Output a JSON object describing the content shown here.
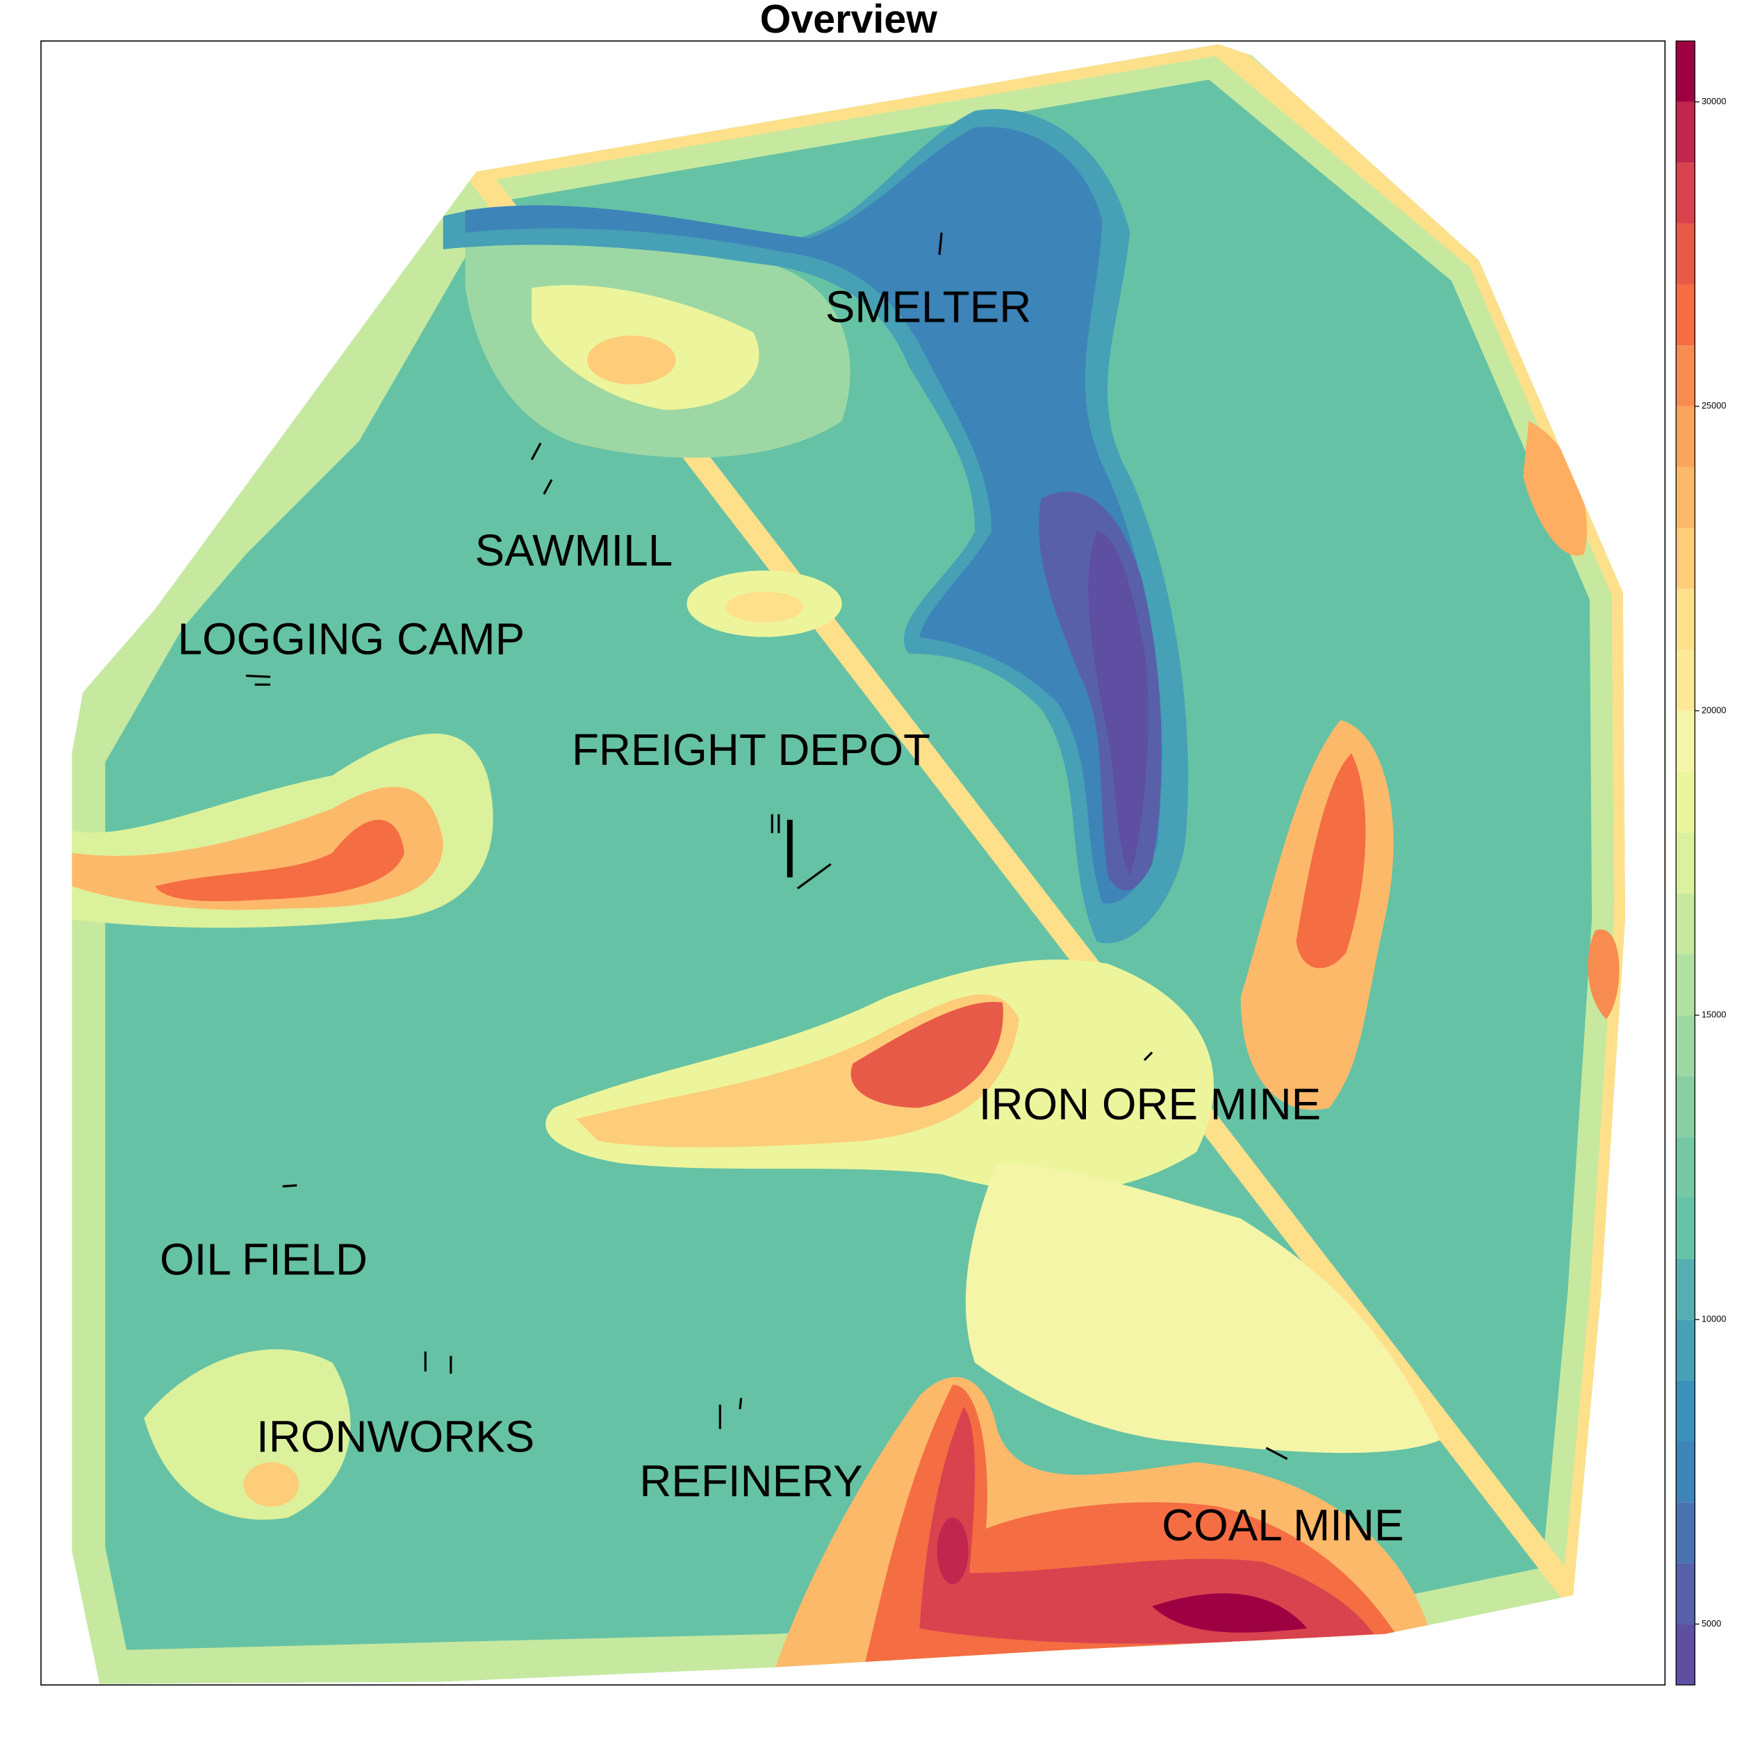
{
  "chart_data": {
    "type": "contour",
    "title": "Overview",
    "labels": [
      "SMELTER",
      "SAWMILL",
      "LOGGING CAMP",
      "FREIGHT DEPOT",
      "IRON ORE MINE",
      "OIL FIELD",
      "IRONWORKS",
      "REFINERY",
      "COAL MINE"
    ],
    "colorbar": {
      "ylim": [
        4000,
        31000
      ],
      "yticks": [
        5000,
        10000,
        15000,
        20000,
        25000,
        30000
      ],
      "colors": [
        "#5e4fa2",
        "#5760a8",
        "#4a72b1",
        "#3d84b9",
        "#3a92bb",
        "#46a0b6",
        "#55afb0",
        "#66c2a5",
        "#74c8a4",
        "#88d0a4",
        "#9dd8a4",
        "#b2e0a2",
        "#c6e99f",
        "#dcf19b",
        "#ecf59c",
        "#f5f5a8",
        "#fee999",
        "#fee08b",
        "#fdcd7a",
        "#fdb96a",
        "#fca55d",
        "#f88c51",
        "#f46d43",
        "#e85a48",
        "#d8434e",
        "#c0264e",
        "#9e0142"
      ]
    }
  }
}
